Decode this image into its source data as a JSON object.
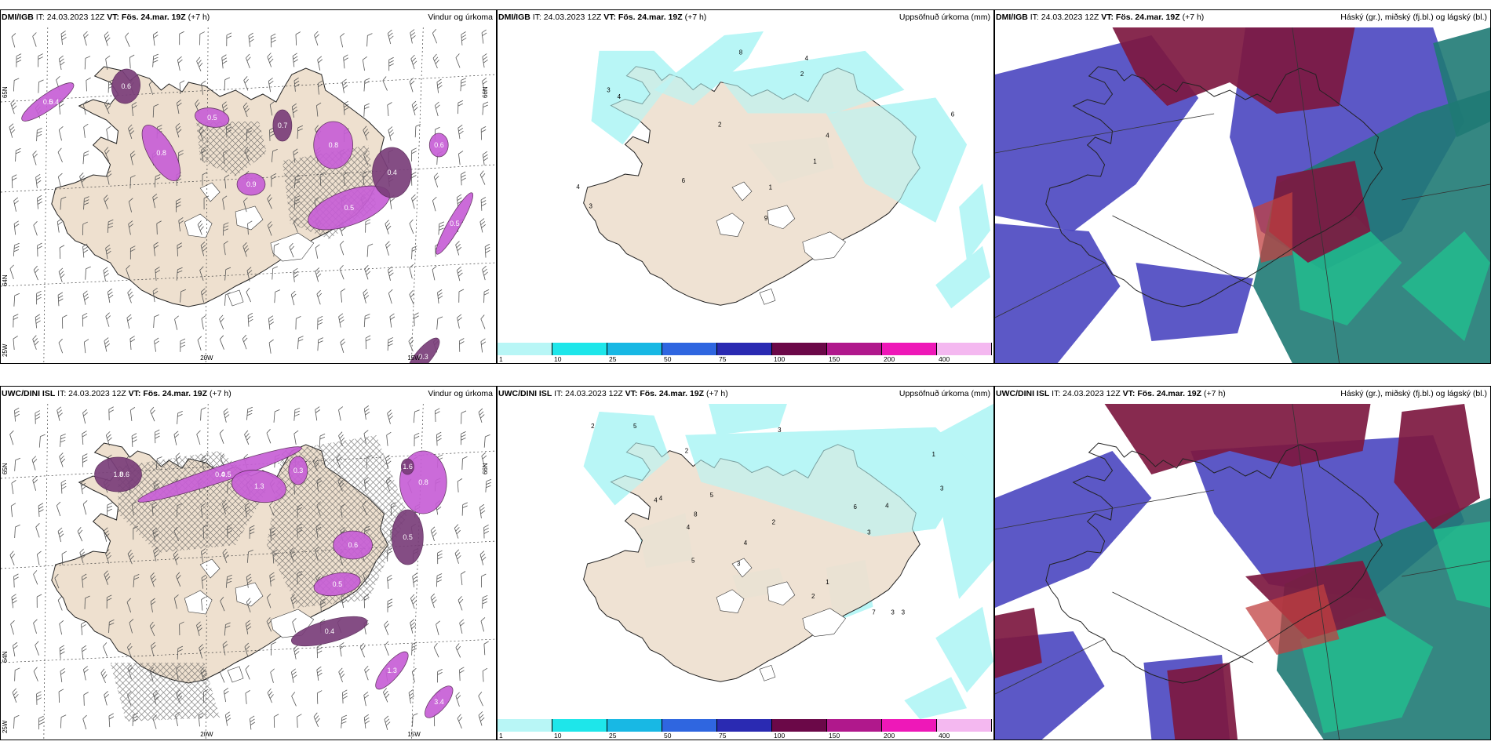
{
  "colors": {
    "land": "#eee0cf",
    "precip_light": "#b8f6f6",
    "wind_precip": "#c75fd6",
    "wind_precip_dark": "#7a3e7a",
    "cloud_high": "#7d1840",
    "cloud_mid": "#4a46c0",
    "cloud_low": "#1f7a74",
    "cloud_low_bright": "#20c890",
    "cloud_red": "#c04040"
  },
  "panels": [
    {
      "model": "DMI/IGB",
      "it_text": "IT: 24.03.2023 12Z",
      "vt_text": "VT: Fös. 24.mar. 19Z",
      "lead": "(+7 h)",
      "title": "Vindur og úrkoma",
      "type": "wind",
      "labels": [
        "0.5",
        "0.6",
        "0.8",
        "0.5",
        "0.7",
        "0.8",
        "0.5",
        "0.4",
        "0.6",
        "0.5",
        "0.3",
        "0.9",
        "0.4"
      ],
      "axis": [
        "65N",
        "66N",
        "64N",
        "25W",
        "20W",
        "15W"
      ]
    },
    {
      "model": "DMI/IGB",
      "it_text": "IT: 24.03.2023 12Z",
      "vt_text": "VT: Fös. 24.mar. 19Z",
      "lead": "(+7 h)",
      "title": "Uppsöfnuð úrkoma (mm)",
      "type": "precip",
      "labels": [
        "4",
        "9",
        "6",
        "4",
        "6",
        "3",
        "2",
        "2",
        "4",
        "3",
        "1",
        "1",
        "4",
        "8"
      ],
      "scale": [
        "1",
        "10",
        "25",
        "50",
        "75",
        "100",
        "150",
        "200",
        "400"
      ]
    },
    {
      "model": "DMI/IGB",
      "it_text": "IT: 24.03.2023 12Z",
      "vt_text": "VT: Fös. 24.mar. 19Z",
      "lead": "(+7 h)",
      "title": "Háský (gr.), miðský (fj.bl.) og lágský (bl.)",
      "type": "cloud"
    },
    {
      "model": "UWC/DINI ISL",
      "it_text": "IT: 24.03.2023 12Z",
      "vt_text": "VT: Fös. 24.mar. 19Z",
      "lead": "(+7 h)",
      "title": "Vindur og úrkoma",
      "type": "wind",
      "labels": [
        "0.4",
        "1.8",
        "1.3",
        "0.8",
        "0.5",
        "0.6",
        "0.5",
        "0.4",
        "1.3",
        "3.4",
        "1.6",
        "0.3",
        "0.5",
        "0.6"
      ],
      "axis": [
        "65N",
        "66N",
        "64N",
        "25W",
        "20W",
        "15W"
      ]
    },
    {
      "model": "UWC/DINI ISL",
      "it_text": "IT: 24.03.2023 12Z",
      "vt_text": "VT: Fös. 24.mar. 19Z",
      "lead": "(+7 h)",
      "title": "Uppsöfnuð úrkoma (mm)",
      "type": "precip",
      "labels": [
        "4",
        "4",
        "5",
        "3",
        "3",
        "2",
        "3",
        "4",
        "5",
        "6",
        "4",
        "3",
        "2",
        "7",
        "8",
        "1",
        "2",
        "3",
        "1",
        "5",
        "3",
        "4",
        "2"
      ],
      "scale": [
        "1",
        "10",
        "25",
        "50",
        "75",
        "100",
        "150",
        "200",
        "400"
      ]
    },
    {
      "model": "UWC/DINI ISL",
      "it_text": "IT: 24.03.2023 12Z",
      "vt_text": "VT: Fös. 24.mar. 19Z",
      "lead": "(+7 h)",
      "title": "Háský (gr.), miðský (fj.bl.) og lágský (bl.)",
      "type": "cloud"
    }
  ],
  "scale_colors": [
    "#b8f6f6",
    "#1ee6ea",
    "#18b8e4",
    "#2f66e0",
    "#2a2ab2",
    "#6b0848",
    "#b0188c",
    "#ee18b8",
    "#f4b8f0"
  ]
}
